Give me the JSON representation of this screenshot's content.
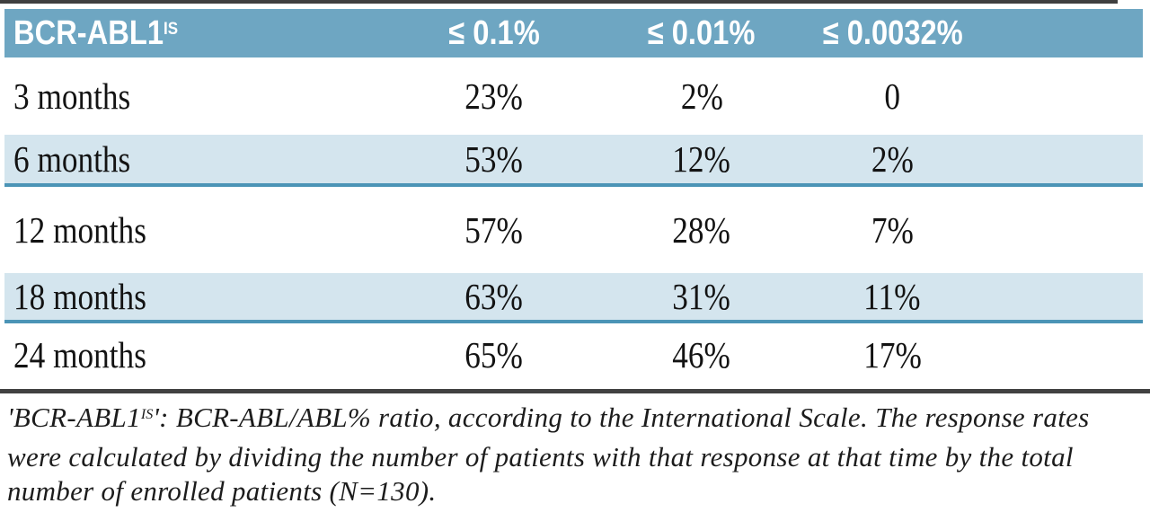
{
  "colors": {
    "header_bg": "#6ea6c2",
    "header_text": "#ffffff",
    "alt_row_bg": "#d4e5ee",
    "alt_row_border": "#4b94b6",
    "rule_dark": "#3f3f3f",
    "body_text": "#131313"
  },
  "table": {
    "header": {
      "label": "BCR-ABL1",
      "label_sup": "IS",
      "cols": [
        "≤ 0.1%",
        "≤ 0.01%",
        "≤ 0.0032%"
      ]
    },
    "rows": [
      {
        "label": "3 months",
        "values": [
          "23%",
          "2%",
          "0"
        ]
      },
      {
        "label": "6 months",
        "values": [
          "53%",
          "12%",
          "2%"
        ]
      },
      {
        "label": "12 months",
        "values": [
          "57%",
          "28%",
          "7%"
        ]
      },
      {
        "label": "18 months",
        "values": [
          "63%",
          "31%",
          "11%"
        ]
      },
      {
        "label": "24 months",
        "values": [
          "65%",
          "46%",
          "17%"
        ]
      }
    ]
  },
  "footnote": {
    "term_open": "'BCR-ABL1",
    "term_sup": "IS",
    "text": "': BCR-ABL/ABL% ratio, according to the International Scale. The response rates were calculated by dividing the number of patients with that response at that time by the total number of enrolled patients (N=130)."
  },
  "chart_data": {
    "type": "table",
    "columns": [
      "BCR-ABL1 IS",
      "≤ 0.1%",
      "≤ 0.01%",
      "≤ 0.0032%"
    ],
    "rows": [
      [
        "3 months",
        "23%",
        "2%",
        "0"
      ],
      [
        "6 months",
        "53%",
        "12%",
        "2%"
      ],
      [
        "12 months",
        "57%",
        "28%",
        "7%"
      ],
      [
        "18 months",
        "63%",
        "31%",
        "11%"
      ],
      [
        "24 months",
        "65%",
        "46%",
        "17%"
      ]
    ]
  }
}
